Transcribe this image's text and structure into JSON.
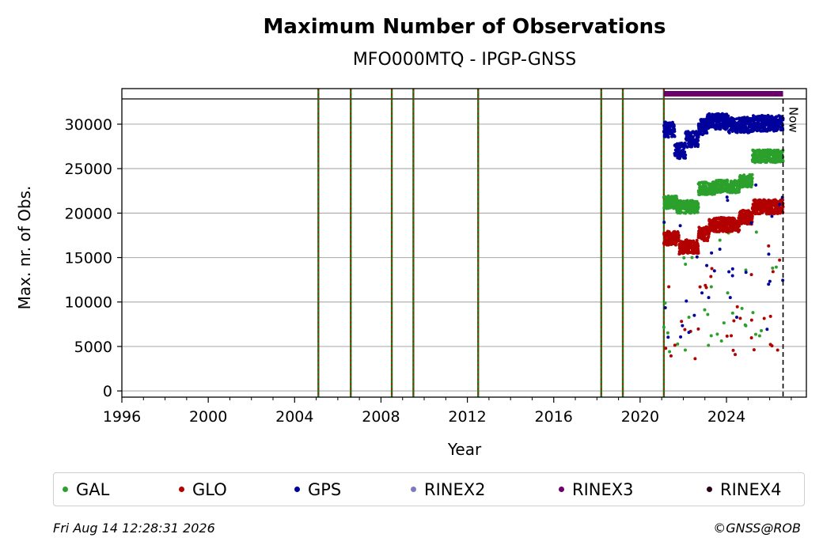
{
  "chart_data": {
    "type": "scatter",
    "title": "Maximum Number of Observations",
    "subtitle": "MFO000MTQ - IPGP-GNSS",
    "xlabel": "Year",
    "ylabel": "Max. nr. of Obs.",
    "xlim": [
      1996,
      2027.7
    ],
    "ylim": [
      -700,
      34000
    ],
    "x_ticks": [
      "1996",
      "2000",
      "2004",
      "2008",
      "2012",
      "2016",
      "2020",
      "2024"
    ],
    "y_ticks": [
      "0",
      "5000",
      "10000",
      "15000",
      "20000",
      "25000",
      "30000"
    ],
    "grid": "horizontal",
    "now_marker": {
      "x": 2026.62,
      "label": "Now"
    },
    "event_lines": [
      2005.1,
      2006.6,
      2008.5,
      2009.5,
      2012.5,
      2018.2,
      2019.2,
      2021.1
    ],
    "rinex3_bar": {
      "start": 2021.1,
      "end": 2026.62
    },
    "series": [
      {
        "name": "GAL",
        "color": "#2ca02c",
        "segments": [
          [
            2021.1,
            2021.7,
            21200
          ],
          [
            2021.7,
            2022.7,
            20700
          ],
          [
            2022.7,
            2023.5,
            22800
          ],
          [
            2023.5,
            2024.6,
            23000
          ],
          [
            2024.6,
            2025.2,
            23600
          ],
          [
            2025.2,
            2026.62,
            26400
          ]
        ]
      },
      {
        "name": "GLO",
        "color": "#b30000",
        "segments": [
          [
            2021.1,
            2021.8,
            17200
          ],
          [
            2021.8,
            2022.7,
            16200
          ],
          [
            2022.7,
            2023.2,
            17700
          ],
          [
            2023.2,
            2024.6,
            18700
          ],
          [
            2024.6,
            2025.2,
            19500
          ],
          [
            2025.2,
            2026.62,
            20700
          ]
        ]
      },
      {
        "name": "GPS",
        "color": "#00009c",
        "segments": [
          [
            2021.1,
            2021.6,
            29400
          ],
          [
            2021.6,
            2022.1,
            27000
          ],
          [
            2022.1,
            2022.7,
            28300
          ],
          [
            2022.7,
            2023.1,
            29700
          ],
          [
            2023.1,
            2024.1,
            30300
          ],
          [
            2024.1,
            2025.2,
            29900
          ],
          [
            2025.2,
            2026.62,
            30100
          ]
        ]
      }
    ],
    "legend": [
      {
        "name": "GAL",
        "color": "#2ca02c"
      },
      {
        "name": "GLO",
        "color": "#b30000"
      },
      {
        "name": "GPS",
        "color": "#00009c"
      },
      {
        "name": "RINEX2",
        "color": "#7b7bbd"
      },
      {
        "name": "RINEX3",
        "color": "#6b006b"
      },
      {
        "name": "RINEX4",
        "color": "#2a001a"
      }
    ]
  },
  "footer": {
    "timestamp": "Fri Aug 14 12:28:31 2026",
    "credit": "©GNSS@ROB"
  }
}
